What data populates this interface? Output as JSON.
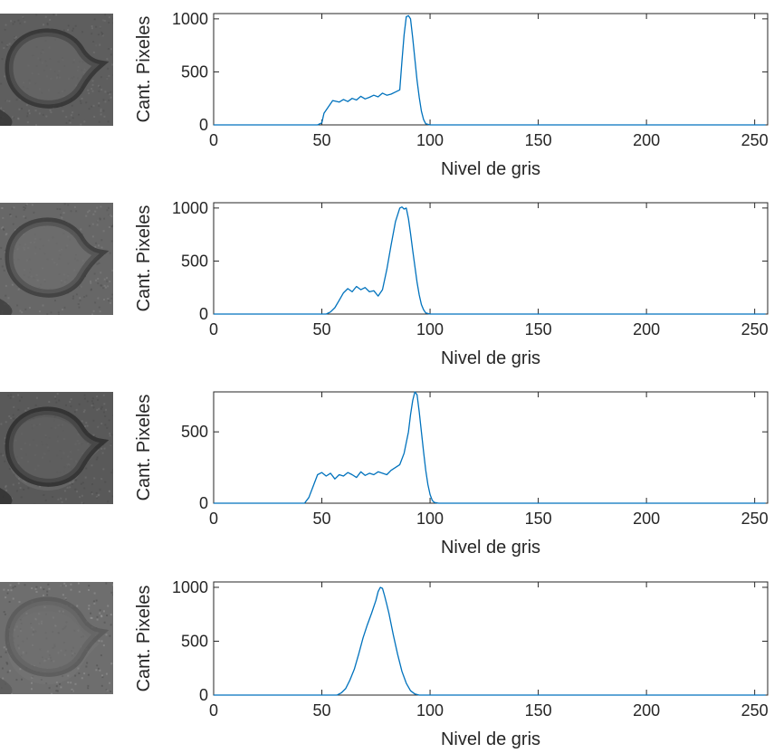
{
  "chart_data": [
    {
      "type": "line",
      "title": "",
      "xlabel": "Nivel de gris",
      "ylabel": "Cant. Pixeles",
      "xlim": [
        0,
        256
      ],
      "ylim": [
        0,
        1050
      ],
      "xticks": [
        0,
        50,
        100,
        150,
        200,
        250
      ],
      "yticks": [
        0,
        500,
        1000
      ],
      "grid": false,
      "thumbnail": {
        "tone": "#5e5e5e",
        "ring": "#333333",
        "halo": "#808080",
        "noise": 0.25
      },
      "color": "#0072BD",
      "series": [
        {
          "name": "",
          "x": [
            0,
            48,
            50,
            51,
            53,
            55,
            58,
            60,
            62,
            64,
            66,
            68,
            70,
            72,
            74,
            76,
            78,
            80,
            82,
            84,
            86,
            87,
            88,
            89,
            90,
            91,
            92,
            93,
            94,
            95,
            96,
            97,
            98,
            100,
            255
          ],
          "y": [
            0,
            0,
            20,
            110,
            170,
            230,
            215,
            240,
            220,
            250,
            235,
            270,
            245,
            260,
            280,
            265,
            300,
            280,
            290,
            310,
            330,
            600,
            850,
            1020,
            1030,
            1000,
            820,
            620,
            420,
            260,
            130,
            50,
            10,
            0,
            0
          ]
        }
      ]
    },
    {
      "type": "line",
      "title": "",
      "xlabel": "Nivel de gris",
      "ylabel": "Cant. Pixeles",
      "xlim": [
        0,
        256
      ],
      "ylim": [
        0,
        1050
      ],
      "xticks": [
        0,
        50,
        100,
        150,
        200,
        250
      ],
      "yticks": [
        0,
        500,
        1000
      ],
      "grid": false,
      "thumbnail": {
        "tone": "#676767",
        "ring": "#3c3c3c",
        "halo": "#868686",
        "noise": 0.3
      },
      "color": "#0072BD",
      "series": [
        {
          "name": "",
          "x": [
            0,
            52,
            54,
            56,
            58,
            60,
            62,
            64,
            66,
            68,
            70,
            72,
            74,
            76,
            78,
            80,
            82,
            84,
            86,
            87,
            88,
            89,
            90,
            91,
            92,
            93,
            94,
            95,
            96,
            97,
            98,
            100,
            255
          ],
          "y": [
            0,
            0,
            20,
            60,
            130,
            200,
            240,
            210,
            260,
            230,
            250,
            210,
            220,
            170,
            230,
            420,
            650,
            870,
            1000,
            1010,
            990,
            1000,
            900,
            760,
            600,
            450,
            300,
            180,
            90,
            40,
            10,
            0,
            0
          ]
        }
      ]
    },
    {
      "type": "line",
      "title": "",
      "xlabel": "Nivel de gris",
      "ylabel": "Cant. Pixeles",
      "xlim": [
        0,
        256
      ],
      "ylim": [
        0,
        780
      ],
      "xticks": [
        0,
        50,
        100,
        150,
        200,
        250
      ],
      "yticks": [
        0,
        500
      ],
      "grid": false,
      "thumbnail": {
        "tone": "#595959",
        "ring": "#2e2e2e",
        "halo": "#7a7a7a",
        "noise": 0.25
      },
      "color": "#0072BD",
      "series": [
        {
          "name": "",
          "x": [
            0,
            42,
            44,
            46,
            48,
            50,
            52,
            54,
            56,
            58,
            60,
            62,
            64,
            66,
            68,
            70,
            72,
            74,
            76,
            78,
            80,
            82,
            84,
            86,
            88,
            90,
            91,
            92,
            93,
            94,
            95,
            96,
            97,
            98,
            99,
            100,
            101,
            102,
            104,
            255
          ],
          "y": [
            0,
            0,
            40,
            120,
            200,
            215,
            190,
            210,
            170,
            200,
            190,
            215,
            200,
            180,
            220,
            195,
            210,
            200,
            220,
            210,
            200,
            230,
            250,
            270,
            350,
            500,
            620,
            720,
            780,
            760,
            640,
            500,
            360,
            230,
            130,
            60,
            20,
            5,
            0,
            0
          ]
        }
      ]
    },
    {
      "type": "line",
      "title": "",
      "xlabel": "Nivel de gris",
      "ylabel": "Cant. Pixeles",
      "xlim": [
        0,
        256
      ],
      "ylim": [
        0,
        1050
      ],
      "xticks": [
        0,
        50,
        100,
        150,
        200,
        250
      ],
      "yticks": [
        0,
        500,
        1000
      ],
      "grid": false,
      "thumbnail": {
        "tone": "#6e6e6e",
        "ring": "#5a5a5a",
        "halo": "#7c7c7c",
        "noise": 0.45
      },
      "color": "#0072BD",
      "series": [
        {
          "name": "",
          "x": [
            0,
            57,
            59,
            61,
            63,
            65,
            67,
            69,
            71,
            73,
            75,
            76,
            77,
            78,
            79,
            80,
            81,
            82,
            83,
            85,
            87,
            89,
            91,
            93,
            95,
            255
          ],
          "y": [
            0,
            0,
            20,
            60,
            140,
            240,
            380,
            530,
            650,
            760,
            880,
            960,
            1000,
            990,
            920,
            840,
            760,
            660,
            560,
            380,
            220,
            110,
            40,
            10,
            0,
            0
          ]
        }
      ]
    }
  ]
}
